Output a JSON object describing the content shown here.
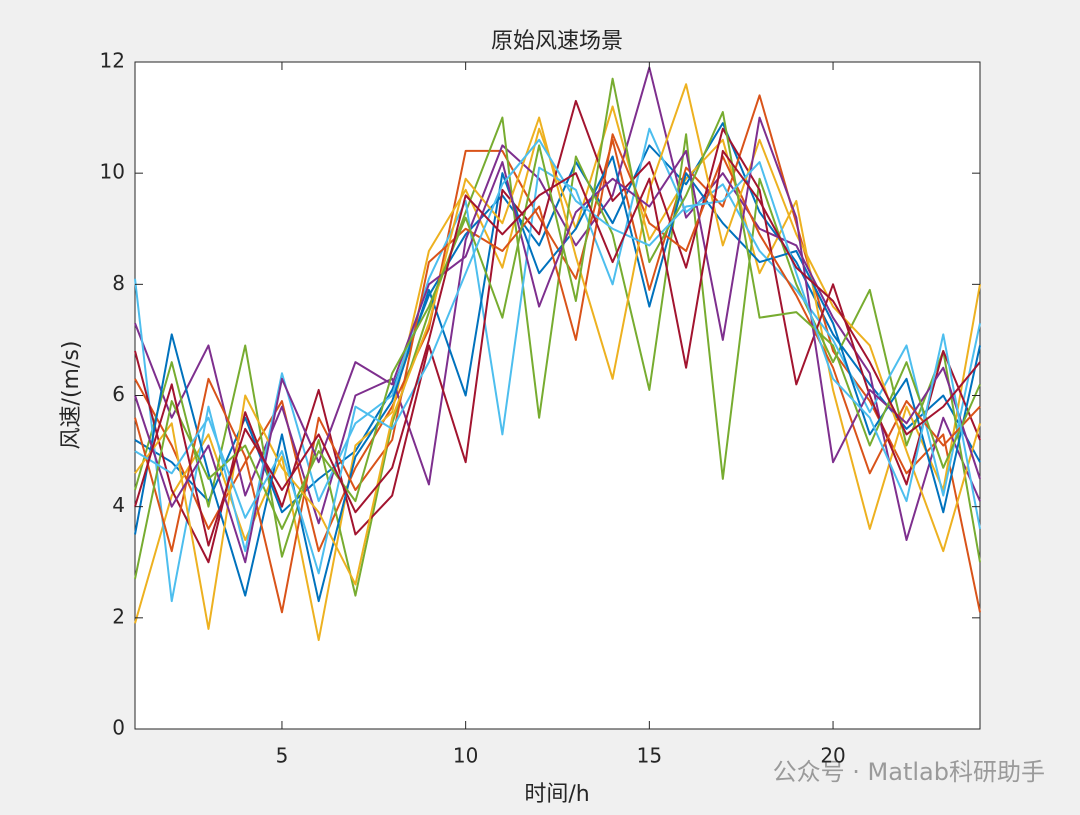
{
  "chart_data": {
    "type": "line",
    "title": "原始风速场景",
    "x_label": "时间/h",
    "y_label": "风速/(m/s)",
    "watermark": "公众号 · Matlab科研助手",
    "x": [
      1,
      2,
      3,
      4,
      5,
      6,
      7,
      8,
      9,
      10,
      11,
      12,
      13,
      14,
      15,
      16,
      17,
      18,
      19,
      20,
      21,
      22,
      23,
      24
    ],
    "xlim": [
      1,
      24
    ],
    "xticks": [
      5,
      10,
      15,
      20
    ],
    "ylim": [
      0,
      12
    ],
    "yticks": [
      0,
      2,
      4,
      6,
      8,
      10,
      12
    ],
    "series": [
      {
        "color": "#0072BD",
        "values": [
          5.2,
          4.8,
          4.1,
          5.6,
          3.9,
          4.5,
          5.0,
          6.1,
          7.8,
          8.9,
          9.6,
          8.7,
          10.2,
          9.1,
          10.5,
          9.8,
          10.9,
          9.3,
          8.4,
          7.1,
          6.2,
          5.4,
          6.0,
          4.8
        ]
      },
      {
        "color": "#D95319",
        "values": [
          6.3,
          5.1,
          3.6,
          4.8,
          5.9,
          3.2,
          4.7,
          5.8,
          7.2,
          10.4,
          10.4,
          9.2,
          8.1,
          10.6,
          7.9,
          10.1,
          9.4,
          11.4,
          9.1,
          6.8,
          5.9,
          4.6,
          5.3,
          2.1
        ]
      },
      {
        "color": "#EDB120",
        "values": [
          1.9,
          4.2,
          5.3,
          3.4,
          4.9,
          1.6,
          5.1,
          5.7,
          8.6,
          9.7,
          8.3,
          10.8,
          9.0,
          11.2,
          8.8,
          9.9,
          10.6,
          8.2,
          9.5,
          6.1,
          3.6,
          5.8,
          4.3,
          8.0
        ]
      },
      {
        "color": "#7E2F8E",
        "values": [
          7.3,
          5.6,
          6.9,
          4.2,
          5.8,
          3.7,
          6.0,
          6.3,
          4.4,
          8.8,
          10.5,
          9.9,
          8.7,
          9.6,
          11.9,
          9.2,
          10.0,
          9.0,
          8.7,
          7.4,
          6.4,
          3.4,
          5.6,
          4.1
        ]
      },
      {
        "color": "#77AC30",
        "values": [
          4.3,
          6.6,
          4.0,
          6.9,
          3.1,
          5.2,
          2.4,
          5.5,
          7.5,
          9.3,
          11.0,
          5.6,
          10.3,
          8.9,
          6.1,
          10.7,
          4.5,
          9.9,
          8.0,
          6.6,
          7.9,
          5.1,
          6.8,
          3.0
        ]
      },
      {
        "color": "#4DBEEE",
        "values": [
          8.1,
          2.3,
          5.8,
          3.2,
          6.4,
          4.1,
          5.5,
          6.0,
          8.1,
          9.5,
          5.3,
          10.1,
          9.7,
          8.0,
          10.8,
          9.3,
          9.8,
          8.6,
          7.9,
          7.0,
          5.7,
          6.9,
          4.2,
          7.3
        ]
      },
      {
        "color": "#A2142F",
        "values": [
          6.8,
          4.3,
          3.0,
          5.7,
          4.0,
          6.1,
          3.5,
          4.2,
          6.9,
          4.8,
          9.7,
          8.9,
          11.3,
          9.5,
          10.2,
          8.3,
          10.8,
          9.7,
          6.2,
          8.0,
          6.0,
          4.4,
          6.8,
          5.2
        ]
      },
      {
        "color": "#0072BD",
        "values": [
          3.5,
          7.1,
          4.6,
          2.4,
          5.3,
          2.3,
          4.9,
          5.9,
          7.9,
          6.0,
          10.0,
          8.2,
          9.0,
          10.3,
          7.6,
          10.0,
          9.1,
          8.4,
          8.6,
          7.3,
          5.3,
          6.3,
          3.9,
          6.9
        ]
      },
      {
        "color": "#D95319",
        "values": [
          5.6,
          3.2,
          6.3,
          4.9,
          2.1,
          5.6,
          4.3,
          5.2,
          8.4,
          9.0,
          8.6,
          9.4,
          7.0,
          10.7,
          9.1,
          8.6,
          10.3,
          8.9,
          7.8,
          6.5,
          4.6,
          5.9,
          5.1,
          5.8
        ]
      },
      {
        "color": "#EDB120",
        "values": [
          4.6,
          5.5,
          1.8,
          6.0,
          4.7,
          3.9,
          2.6,
          5.6,
          7.3,
          9.9,
          9.1,
          11.0,
          8.5,
          6.3,
          9.7,
          11.6,
          8.7,
          10.6,
          8.9,
          7.6,
          6.9,
          5.0,
          3.2,
          5.5
        ]
      },
      {
        "color": "#7E2F8E",
        "values": [
          6.0,
          4.0,
          5.1,
          3.0,
          6.3,
          4.8,
          6.6,
          6.2,
          8.0,
          8.5,
          10.2,
          7.6,
          9.3,
          9.9,
          9.4,
          10.4,
          7.0,
          11.0,
          9.2,
          4.8,
          6.1,
          5.5,
          6.5,
          4.5
        ]
      },
      {
        "color": "#77AC30",
        "values": [
          2.7,
          5.9,
          4.5,
          5.1,
          3.6,
          5.0,
          4.1,
          6.4,
          7.6,
          9.2,
          7.4,
          10.5,
          7.7,
          11.7,
          8.4,
          9.6,
          11.1,
          7.4,
          7.5,
          6.9,
          5.1,
          6.6,
          4.7,
          6.2
        ]
      },
      {
        "color": "#4DBEEE",
        "values": [
          5.0,
          4.6,
          5.6,
          3.8,
          5.0,
          2.8,
          5.8,
          5.4,
          6.6,
          8.2,
          9.8,
          10.6,
          9.5,
          9.0,
          8.7,
          9.4,
          9.5,
          10.2,
          8.2,
          6.3,
          5.6,
          4.1,
          7.1,
          3.6
        ]
      },
      {
        "color": "#A2142F",
        "values": [
          4.0,
          6.2,
          3.3,
          5.4,
          4.3,
          5.3,
          3.9,
          4.7,
          7.0,
          9.6,
          8.9,
          9.6,
          10.0,
          8.4,
          9.9,
          6.5,
          10.4,
          9.5,
          8.3,
          7.7,
          6.6,
          5.3,
          5.8,
          6.6
        ]
      }
    ]
  }
}
